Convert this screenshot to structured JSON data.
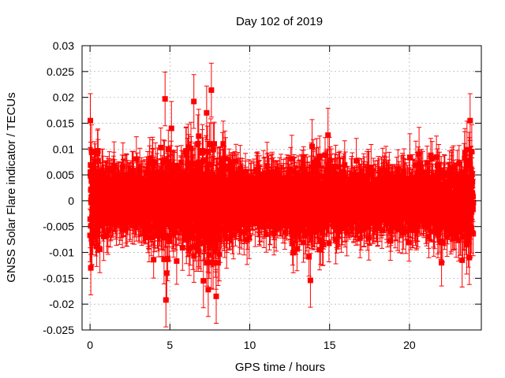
{
  "chart_data": {
    "type": "scatter",
    "title": "Day 102 of 2019",
    "xlabel": "GPS time / hours",
    "ylabel": "GNSS Solar Flare indicator / TECUs",
    "xlim": [
      -0.5,
      24.5
    ],
    "ylim": [
      -0.025,
      0.03
    ],
    "xticks": [
      0,
      5,
      10,
      15,
      20
    ],
    "xtick_labels": [
      "0",
      "5",
      "10",
      "15",
      "20"
    ],
    "yticks": [
      -0.025,
      -0.02,
      -0.015,
      -0.01,
      -0.005,
      0,
      0.005,
      0.01,
      0.015,
      0.02,
      0.025,
      0.03
    ],
    "ytick_labels": [
      "-0.025",
      "-0.02",
      "-0.015",
      "-0.01",
      "-0.005",
      "0",
      "0.005",
      "0.01",
      "0.015",
      "0.02",
      "0.025",
      "0.03"
    ],
    "grid": true,
    "marker": "square",
    "error_bars": true,
    "series": [
      {
        "name": "solar flare indicator",
        "color": "#ff0000",
        "x_start": 0,
        "x_end": 24,
        "x_step": 0.008333,
        "typical_std": 0.004,
        "typical_error": 0.004,
        "notable_points": [
          {
            "x": 0.02,
            "y": 0.0155
          },
          {
            "x": 0.05,
            "y": -0.013
          },
          {
            "x": 0.1,
            "y": 0.0095
          },
          {
            "x": 4.7,
            "y": 0.0197
          },
          {
            "x": 4.75,
            "y": -0.0192
          },
          {
            "x": 4.8,
            "y": -0.014
          },
          {
            "x": 5.1,
            "y": 0.014
          },
          {
            "x": 6.5,
            "y": 0.0192
          },
          {
            "x": 6.8,
            "y": 0.0125
          },
          {
            "x": 7.3,
            "y": 0.017
          },
          {
            "x": 7.6,
            "y": 0.0214
          },
          {
            "x": 7.4,
            "y": -0.0172
          },
          {
            "x": 7.9,
            "y": -0.0185
          },
          {
            "x": 7.1,
            "y": -0.0155
          },
          {
            "x": 13.8,
            "y": -0.0154
          },
          {
            "x": 14.9,
            "y": 0.0127
          },
          {
            "x": 13.9,
            "y": 0.0105
          },
          {
            "x": 23.8,
            "y": 0.0155
          },
          {
            "x": 23.75,
            "y": -0.011
          },
          {
            "x": 23.9,
            "y": 0.0095
          },
          {
            "x": 23.3,
            "y": -0.0115
          },
          {
            "x": 20.6,
            "y": 0.009
          }
        ]
      }
    ]
  }
}
